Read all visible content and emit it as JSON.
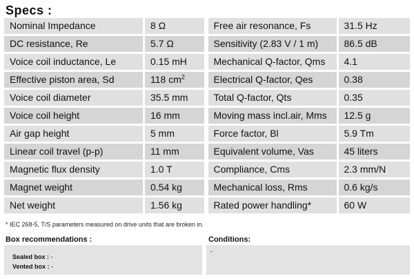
{
  "title": "Specs :",
  "rows": [
    {
      "l_label": "Nominal Impedance",
      "l_value": "8 Ω",
      "r_label": "Free air resonance, Fs",
      "r_value": "31.5 Hz"
    },
    {
      "l_label": "DC resistance, Re",
      "l_value": "5.7 Ω",
      "r_label": "Sensitivity (2.83 V / 1 m)",
      "r_value": "86.5 dB"
    },
    {
      "l_label": "Voice coil inductance, Le",
      "l_value": "0.15 mH",
      "r_label": "Mechanical Q-factor, Qms",
      "r_value": "4.1"
    },
    {
      "l_label": "Effective piston area, Sd",
      "l_value": "118 cm",
      "l_sup": "2",
      "r_label": "Electrical Q-factor, Qes",
      "r_value": "0.38"
    },
    {
      "l_label": "Voice coil diameter",
      "l_value": "35.5 mm",
      "r_label": "Total Q-factor, Qts",
      "r_value": "0.35"
    },
    {
      "l_label": "Voice coil height",
      "l_value": "16 mm",
      "r_label": "Moving mass incl.air, Mms",
      "r_value": "12.5 g"
    },
    {
      "l_label": "Air gap height",
      "l_value": "5 mm",
      "r_label": "Force factor, Bl",
      "r_value": "5.9 Tm"
    },
    {
      "l_label": "Linear coil travel (p-p)",
      "l_value": "11 mm",
      "r_label": "Equivalent volume, Vas",
      "r_value": "45 liters"
    },
    {
      "l_label": "Magnetic flux density",
      "l_value": "1.0 T",
      "r_label": "Compliance, Cms",
      "r_value": "2.3 mm/N"
    },
    {
      "l_label": "Magnet weight",
      "l_value": "0.54 kg",
      "r_label": "Mechanical loss, Rms",
      "r_value": "0.6 kg/s"
    },
    {
      "l_label": "Net weight",
      "l_value": "1.56 kg",
      "r_label": "Rated power handling*",
      "r_value": "60 W"
    }
  ],
  "footnote": "* IEC 268-5, T/S parameters measured on drive units that are broken in.",
  "box": {
    "heading": "Box  recommendations :",
    "sealed_label": "Sealed box :",
    "sealed_value": " -",
    "vented_label": "Vented box :",
    "vented_value": " -"
  },
  "conditions": {
    "heading": "Conditions:",
    "value": "-"
  }
}
